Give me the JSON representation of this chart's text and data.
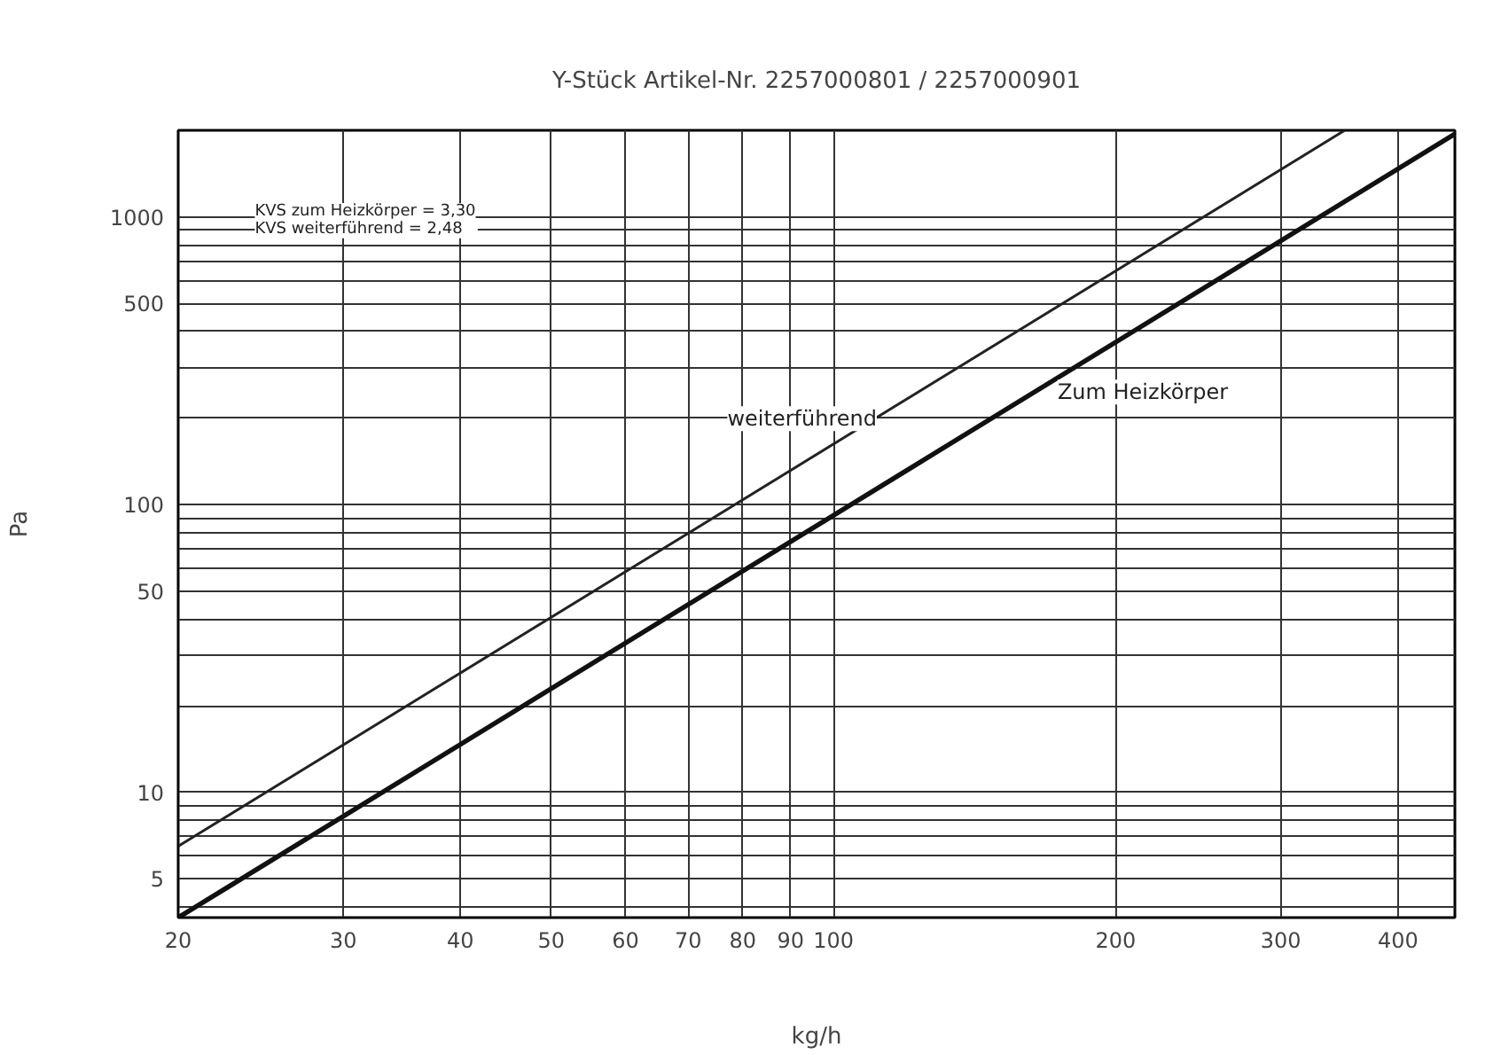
{
  "chart_data": {
    "type": "line",
    "title": "Y-Stück Artikel-Nr. 2257000801 / 2257000901",
    "xlabel": "kg/h",
    "ylabel": "Pa",
    "log": "xy",
    "grid": true,
    "legend": false,
    "marker": "none",
    "line_style": "solid",
    "xlim": [
      20,
      460
    ],
    "ylim": [
      3.67,
      2000
    ],
    "xticks": [
      20,
      30,
      40,
      50,
      60,
      70,
      80,
      90,
      100,
      200,
      300,
      400
    ],
    "yticks": [
      {
        "value": 4,
        "label": null
      },
      5,
      {
        "value": 6,
        "label": null
      },
      {
        "value": 7,
        "label": null
      },
      {
        "value": 8,
        "label": null
      },
      {
        "value": 9,
        "label": null
      },
      10,
      {
        "value": 20,
        "label": null
      },
      {
        "value": 30,
        "label": null
      },
      {
        "value": 40,
        "label": null
      },
      50,
      {
        "value": 60,
        "label": null
      },
      {
        "value": 70,
        "label": null
      },
      {
        "value": 80,
        "label": null
      },
      {
        "value": 90,
        "label": null
      },
      100,
      {
        "value": 200,
        "label": null
      },
      {
        "value": 300,
        "label": null
      },
      {
        "value": 400,
        "label": null
      },
      500,
      {
        "value": 600,
        "label": null
      },
      {
        "value": 700,
        "label": null
      },
      {
        "value": 800,
        "label": null
      },
      {
        "value": 900,
        "label": null
      },
      1000
    ],
    "series": [
      {
        "name": "weiterführend",
        "color": "#222222",
        "x": [
          20,
          351
        ],
        "values": [
          6.5,
          2000
        ]
      },
      {
        "name": "Zum Heizkörper",
        "color": "#111111",
        "x": [
          20,
          460
        ],
        "values": [
          3.67,
          1943
        ]
      }
    ],
    "annotations": [
      "KVS zum Heizkörper = 3,30",
      "KVS weiterführend    = 2,48"
    ]
  }
}
